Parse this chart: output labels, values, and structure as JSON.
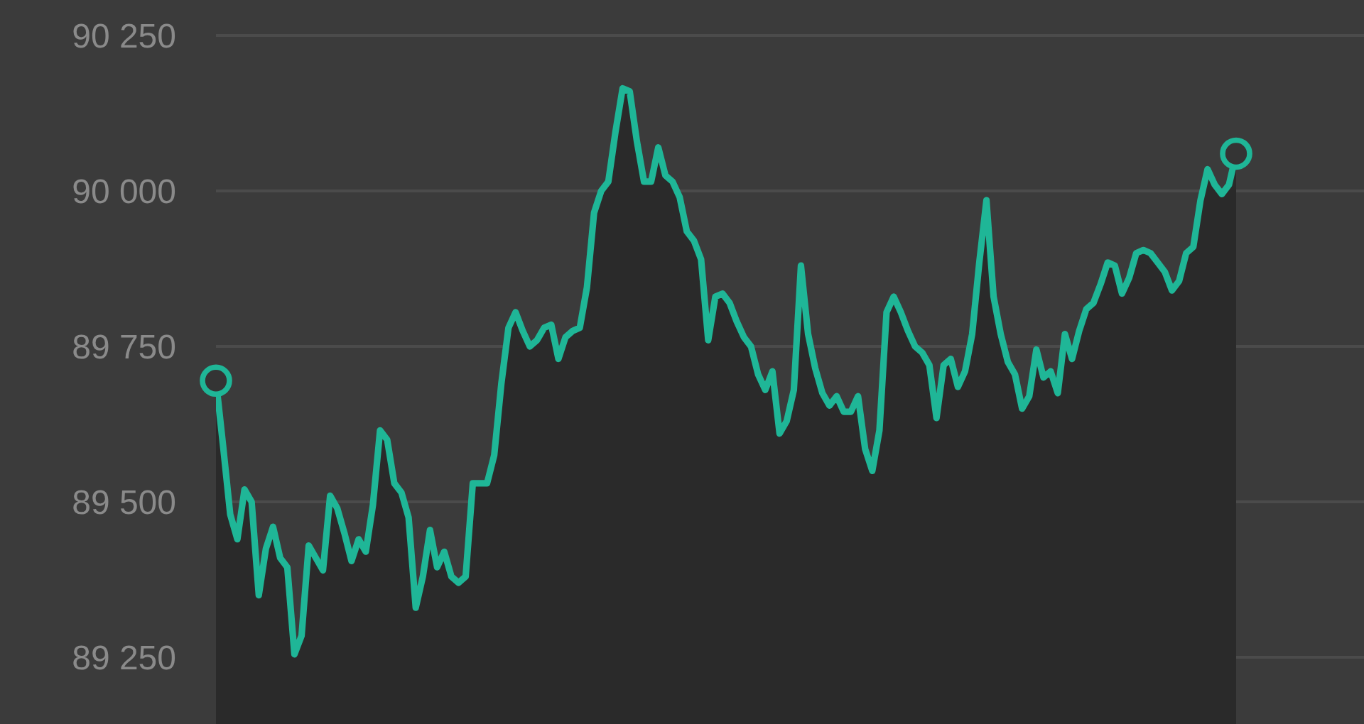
{
  "chart_data": {
    "type": "area",
    "categories": [
      null,
      null,
      null,
      null,
      null,
      null,
      null,
      null,
      null,
      null,
      null,
      null,
      null,
      null,
      null,
      null,
      null,
      null,
      null,
      null,
      null,
      null,
      null,
      null,
      null,
      null,
      null,
      null,
      null,
      null,
      null,
      null,
      null,
      null,
      null,
      null,
      null,
      null,
      null,
      null,
      null,
      null,
      null,
      null,
      null,
      null,
      null,
      null,
      null,
      null,
      null,
      null,
      null,
      null,
      null,
      null,
      null,
      null,
      null,
      null,
      null,
      null,
      null,
      null,
      null,
      null,
      null,
      null,
      null,
      null,
      null,
      null,
      null,
      null,
      null,
      null,
      null,
      null,
      null,
      null,
      null,
      null,
      null,
      null,
      null,
      null,
      null,
      null,
      null,
      null,
      null,
      null,
      null,
      null,
      null,
      null,
      null,
      null,
      null,
      null,
      null,
      null,
      null,
      null,
      null,
      null,
      null,
      null,
      null,
      null,
      null,
      null,
      null,
      null,
      null,
      null,
      null,
      null,
      null,
      null,
      null,
      null,
      null,
      null,
      null,
      null,
      null,
      null,
      null,
      null,
      null,
      null,
      null,
      null,
      null,
      null,
      null,
      null,
      null,
      null,
      null,
      null,
      null,
      null
    ],
    "series": [
      {
        "color": "#1fb697",
        "values": [
          89695,
          89590,
          89480,
          89440,
          89520,
          89500,
          89350,
          89425,
          89460,
          89410,
          89395,
          89255,
          89285,
          89430,
          89410,
          89390,
          89510,
          89490,
          89450,
          89405,
          89440,
          89420,
          89495,
          89615,
          89600,
          89530,
          89515,
          89475,
          89330,
          89380,
          89455,
          89395,
          89420,
          89380,
          89370,
          89380,
          89530,
          89530,
          89530,
          89575,
          89690,
          89780,
          89805,
          89775,
          89750,
          89760,
          89780,
          89785,
          89730,
          89765,
          89775,
          89780,
          89845,
          89965,
          90000,
          90015,
          90095,
          90165,
          90160,
          90080,
          90015,
          90015,
          90070,
          90025,
          90015,
          89990,
          89935,
          89920,
          89890,
          89760,
          89830,
          89835,
          89820,
          89790,
          89765,
          89750,
          89705,
          89680,
          89710,
          89610,
          89630,
          89680,
          89880,
          89770,
          89715,
          89675,
          89655,
          89670,
          89645,
          89645,
          89670,
          89585,
          89550,
          89615,
          89805,
          89830,
          89805,
          89775,
          89750,
          89740,
          89720,
          89635,
          89720,
          89730,
          89685,
          89710,
          89770,
          89885,
          89985,
          89830,
          89770,
          89725,
          89705,
          89650,
          89670,
          89745,
          89700,
          89710,
          89675,
          89770,
          89730,
          89775,
          89810,
          89820,
          89850,
          89885,
          89880,
          89835,
          89860,
          89900,
          89905,
          89900,
          89885,
          89870,
          89840,
          89855,
          89900,
          89910,
          89985,
          90035,
          90010,
          89995,
          90010,
          90060
        ]
      },
      {
        "type": "scatter",
        "marker": "circle",
        "color": "#1fb697",
        "values": [
          89695,
          null,
          null,
          null,
          null,
          null,
          null,
          null,
          null,
          null,
          null,
          null,
          null,
          null,
          null,
          null,
          null,
          null,
          null,
          null,
          null,
          null,
          null,
          null,
          null,
          null,
          null,
          null,
          null,
          null,
          null,
          null,
          null,
          null,
          null,
          null,
          null,
          null,
          null,
          null,
          null,
          null,
          null,
          null,
          null,
          null,
          null,
          null,
          null,
          null,
          null,
          null,
          null,
          null,
          null,
          null,
          null,
          null,
          null,
          null,
          null,
          null,
          null,
          null,
          null,
          null,
          null,
          null,
          null,
          null,
          null,
          null,
          null,
          null,
          null,
          null,
          null,
          null,
          null,
          null,
          null,
          null,
          null,
          null,
          null,
          null,
          null,
          null,
          null,
          null,
          null,
          null,
          null,
          null,
          null,
          null,
          null,
          null,
          null,
          null,
          null,
          null,
          null,
          null,
          null,
          null,
          null,
          null,
          null,
          null,
          null,
          null,
          null,
          null,
          null,
          null,
          null,
          null,
          null,
          null,
          null,
          null,
          null,
          null,
          null,
          null,
          null,
          null,
          null,
          null,
          null,
          null,
          null,
          null,
          null,
          null,
          null,
          null,
          null,
          null,
          null,
          null,
          null,
          90060
        ]
      }
    ],
    "ylim": [
      89143,
      90307
    ],
    "yticks": [
      {
        "value": 89250,
        "label": "89 250"
      },
      {
        "value": 89500,
        "label": "89 500"
      },
      {
        "value": 89750,
        "label": "89 750"
      },
      {
        "value": 90000,
        "label": "90 000"
      },
      {
        "value": 90250,
        "label": "90 250"
      }
    ],
    "grid": "y",
    "tick_labels": "y"
  }
}
